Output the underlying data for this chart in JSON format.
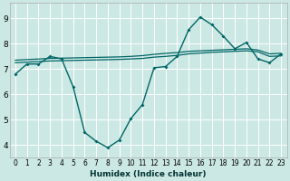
{
  "xlabel": "Humidex (Indice chaleur)",
  "bg_color": "#cce8e4",
  "grid_color": "#ffffff",
  "line_color": "#006666",
  "xlim": [
    -0.5,
    23.5
  ],
  "ylim": [
    3.5,
    9.6
  ],
  "yticks": [
    4,
    5,
    6,
    7,
    8,
    9
  ],
  "xticks": [
    0,
    1,
    2,
    3,
    4,
    5,
    6,
    7,
    8,
    9,
    10,
    11,
    12,
    13,
    14,
    15,
    16,
    17,
    18,
    19,
    20,
    21,
    22,
    23
  ],
  "line1_x": [
    0,
    1,
    2,
    3,
    4,
    5,
    6,
    7,
    8,
    9,
    10,
    11,
    12,
    13,
    14,
    15,
    16,
    17,
    18,
    19,
    20,
    21,
    22,
    23
  ],
  "line1_y": [
    6.8,
    7.2,
    7.2,
    7.5,
    7.4,
    6.3,
    4.5,
    4.15,
    3.9,
    4.2,
    5.05,
    5.6,
    7.05,
    7.1,
    7.5,
    8.55,
    9.05,
    8.75,
    8.3,
    7.8,
    8.05,
    7.4,
    7.25,
    7.6
  ],
  "line2_x": [
    0,
    3,
    4,
    5,
    6,
    7,
    8,
    9,
    10,
    11,
    12,
    13,
    14,
    15,
    16,
    17,
    18,
    19,
    20,
    21,
    22,
    23
  ],
  "line2_y": [
    7.35,
    7.42,
    7.43,
    7.44,
    7.45,
    7.46,
    7.47,
    7.48,
    7.5,
    7.53,
    7.58,
    7.62,
    7.65,
    7.7,
    7.72,
    7.74,
    7.76,
    7.78,
    7.8,
    7.75,
    7.6,
    7.62
  ],
  "line3_x": [
    0,
    3,
    4,
    5,
    6,
    7,
    8,
    9,
    10,
    11,
    12,
    13,
    14,
    15,
    16,
    17,
    18,
    19,
    20,
    21,
    22,
    23
  ],
  "line3_y": [
    7.25,
    7.32,
    7.33,
    7.34,
    7.35,
    7.36,
    7.37,
    7.38,
    7.4,
    7.42,
    7.47,
    7.5,
    7.54,
    7.6,
    7.63,
    7.66,
    7.68,
    7.7,
    7.72,
    7.68,
    7.5,
    7.52
  ],
  "xlabel_fontsize": 6.5,
  "tick_fontsize_x": 5.5,
  "tick_fontsize_y": 6.5
}
